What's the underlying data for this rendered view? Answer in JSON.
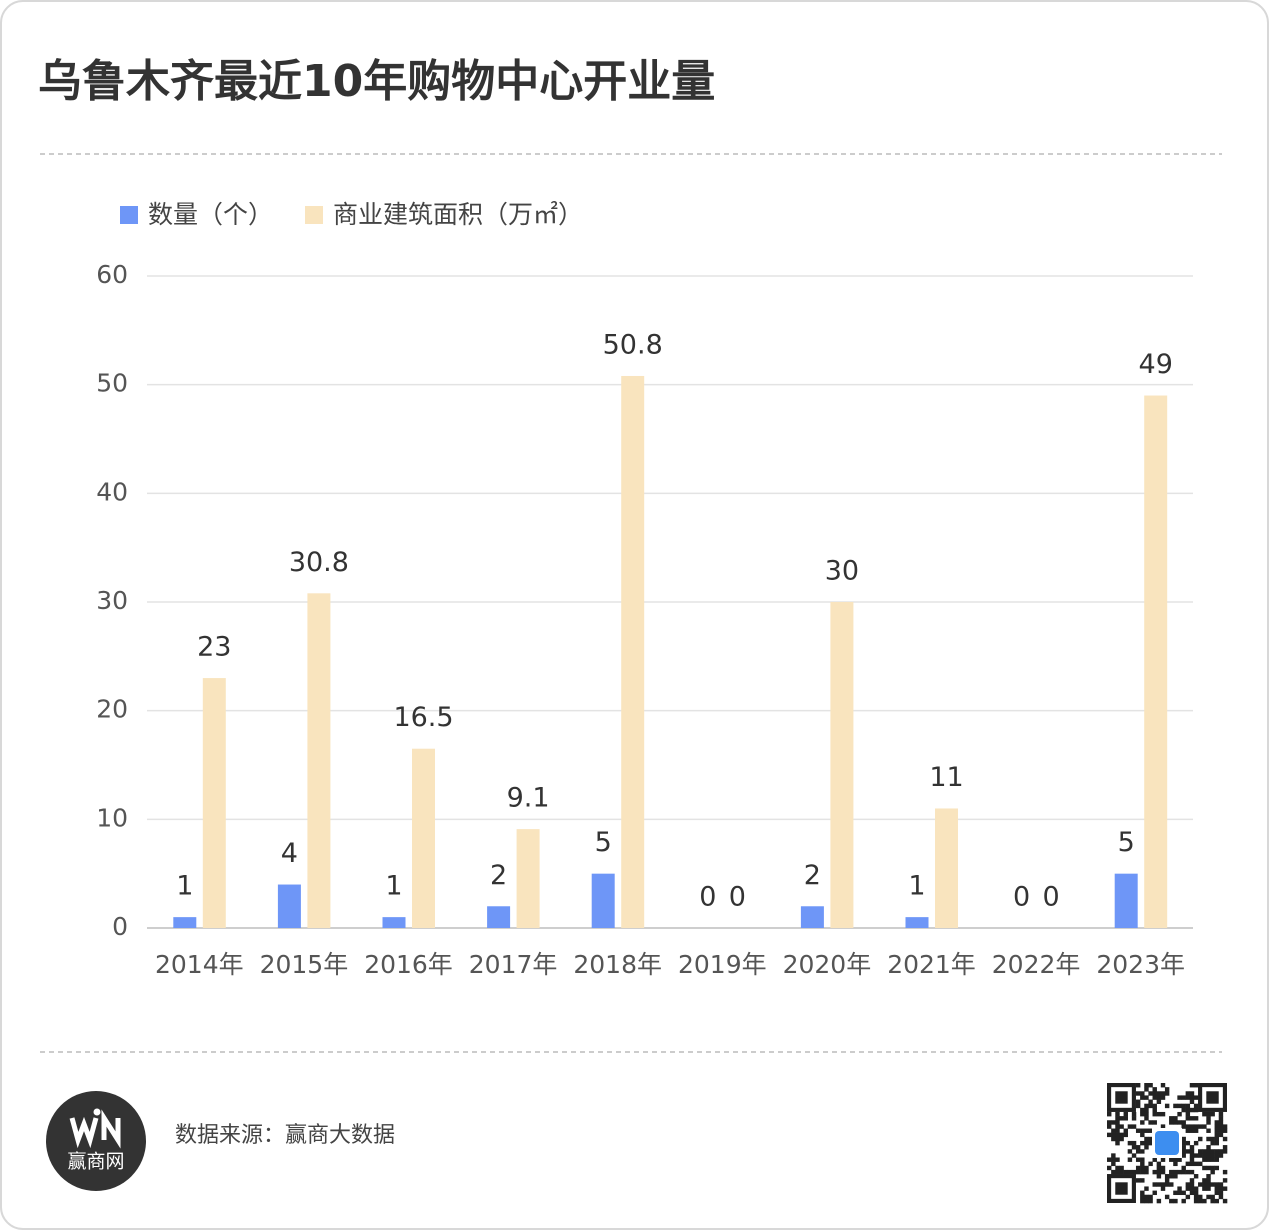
{
  "chart_data": {
    "type": "bar",
    "title": "乌鲁木齐最近10年购物中心开业量",
    "categories": [
      "2014年",
      "2015年",
      "2016年",
      "2017年",
      "2018年",
      "2019年",
      "2020年",
      "2021年",
      "2022年",
      "2023年"
    ],
    "series": [
      {
        "name": "数量（个）",
        "color": "#6e96f7",
        "values": [
          1,
          4,
          1,
          2,
          5,
          0,
          2,
          1,
          0,
          5
        ]
      },
      {
        "name": "商业建筑面积（万㎡）",
        "color": "#f9e4be",
        "values": [
          23,
          30.8,
          16.5,
          9.1,
          50.8,
          0,
          30,
          11,
          0,
          49
        ]
      }
    ],
    "ylim": [
      0,
      60
    ],
    "yticks": [
      0,
      10,
      20,
      30,
      40,
      50,
      60
    ],
    "grid": true,
    "legend": "top-left",
    "source": "数据来源：赢商大数据",
    "logo": "赢商网"
  }
}
